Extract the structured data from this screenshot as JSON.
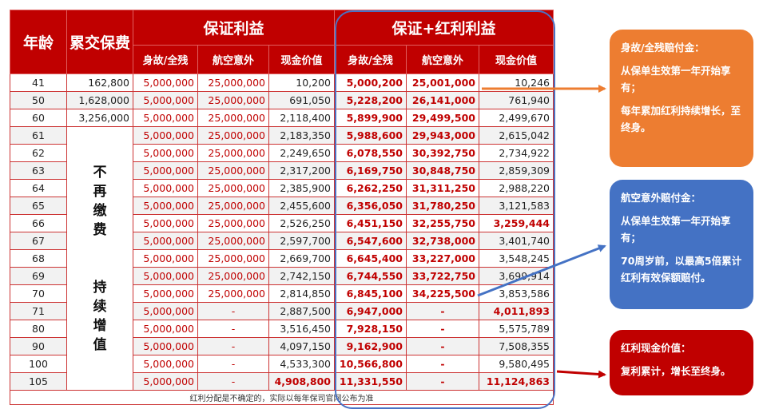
{
  "header": {
    "age": "年龄",
    "premium": "累交保费",
    "guaranteed": "保证利益",
    "bonus": "保证+红利利益",
    "death": "身故/全残",
    "air": "航空意外",
    "cash": "现金价值"
  },
  "merged_text_1": [
    "不",
    "再",
    "缴",
    "费"
  ],
  "merged_text_2": [
    "持",
    "续",
    "增",
    "值"
  ],
  "rows": [
    {
      "age": "41",
      "premium": "162,800",
      "g_death": "5,000,000",
      "g_air": "25,000,000",
      "g_cash": "10,200",
      "b_death": "5,000,200",
      "b_air": "25,001,000",
      "b_cash": "10,246"
    },
    {
      "age": "50",
      "premium": "1,628,000",
      "g_death": "5,000,000",
      "g_air": "25,000,000",
      "g_cash": "691,050",
      "b_death": "5,228,200",
      "b_air": "26,141,000",
      "b_cash": "761,940"
    },
    {
      "age": "60",
      "premium": "3,256,000",
      "g_death": "5,000,000",
      "g_air": "25,000,000",
      "g_cash": "2,118,400",
      "b_death": "5,899,900",
      "b_air": "29,499,500",
      "b_cash": "2,499,670"
    },
    {
      "age": "61",
      "premium": "",
      "g_death": "5,000,000",
      "g_air": "25,000,000",
      "g_cash": "2,183,350",
      "b_death": "5,988,600",
      "b_air": "29,943,000",
      "b_cash": "2,615,042"
    },
    {
      "age": "62",
      "premium": "",
      "g_death": "5,000,000",
      "g_air": "25,000,000",
      "g_cash": "2,249,650",
      "b_death": "6,078,550",
      "b_air": "30,392,750",
      "b_cash": "2,734,922"
    },
    {
      "age": "63",
      "premium": "",
      "g_death": "5,000,000",
      "g_air": "25,000,000",
      "g_cash": "2,317,200",
      "b_death": "6,169,750",
      "b_air": "30,848,750",
      "b_cash": "2,859,309"
    },
    {
      "age": "64",
      "premium": "",
      "g_death": "5,000,000",
      "g_air": "25,000,000",
      "g_cash": "2,385,900",
      "b_death": "6,262,250",
      "b_air": "31,311,250",
      "b_cash": "2,988,220"
    },
    {
      "age": "65",
      "premium": "",
      "g_death": "5,000,000",
      "g_air": "25,000,000",
      "g_cash": "2,455,600",
      "b_death": "6,356,050",
      "b_air": "31,780,250",
      "b_cash": "3,121,583"
    },
    {
      "age": "66",
      "premium": "",
      "g_death": "5,000,000",
      "g_air": "25,000,000",
      "g_cash": "2,526,250",
      "b_death": "6,451,150",
      "b_air": "32,255,750",
      "b_cash": "3,259,444",
      "b_cash_red": true
    },
    {
      "age": "67",
      "premium": "",
      "g_death": "5,000,000",
      "g_air": "25,000,000",
      "g_cash": "2,597,700",
      "b_death": "6,547,600",
      "b_air": "32,738,000",
      "b_cash": "3,401,740"
    },
    {
      "age": "68",
      "premium": "",
      "g_death": "5,000,000",
      "g_air": "25,000,000",
      "g_cash": "2,669,700",
      "b_death": "6,645,400",
      "b_air": "33,227,000",
      "b_cash": "3,548,245"
    },
    {
      "age": "69",
      "premium": "",
      "g_death": "5,000,000",
      "g_air": "25,000,000",
      "g_cash": "2,742,150",
      "b_death": "6,744,550",
      "b_air": "33,722,750",
      "b_cash": "3,699,914"
    },
    {
      "age": "70",
      "premium": "",
      "g_death": "5,000,000",
      "g_air": "25,000,000",
      "g_cash": "2,814,850",
      "b_death": "6,845,100",
      "b_air": "34,225,500",
      "b_cash": "3,853,586"
    },
    {
      "age": "71",
      "premium": "",
      "g_death": "5,000,000",
      "g_air": "-",
      "g_cash": "2,887,500",
      "b_death": "6,947,000",
      "b_air": "-",
      "b_cash": "4,011,893",
      "b_cash_red": true
    },
    {
      "age": "80",
      "premium": "",
      "g_death": "5,000,000",
      "g_air": "-",
      "g_cash": "3,516,450",
      "b_death": "7,928,150",
      "b_air": "-",
      "b_cash": "5,575,789"
    },
    {
      "age": "90",
      "premium": "",
      "g_death": "5,000,000",
      "g_air": "-",
      "g_cash": "4,097,150",
      "b_death": "9,162,900",
      "b_air": "-",
      "b_cash": "7,508,355"
    },
    {
      "age": "100",
      "premium": "",
      "g_death": "5,000,000",
      "g_air": "-",
      "g_cash": "4,533,300",
      "b_death": "10,566,800",
      "b_air": "-",
      "b_cash": "9,580,495"
    },
    {
      "age": "105",
      "premium": "",
      "g_death": "5,000,000",
      "g_air": "-",
      "g_cash": "4,908,800",
      "g_cash_red": true,
      "b_death": "11,331,550",
      "b_air": "-",
      "b_cash": "11,124,863",
      "b_cash_red": true
    }
  ],
  "footnote": "红利分配是不确定的，实际以每年保司官网公布为准",
  "callouts": {
    "death": {
      "title": "身故/全残赔付金：",
      "p1": "从保单生效第一年开始享有；",
      "p2": "每年累加红利持续增长，至终身。",
      "color": "#ed7d31"
    },
    "air": {
      "title": "航空意外赔付金：",
      "p1": "从保单生效第一年开始享有；",
      "p2": "70周岁前，以最高5倍累计红利有效保额赔付。",
      "color": "#4472c4"
    },
    "cash": {
      "title": "红利现金价值：",
      "p1": "复利累计，增长至终身。",
      "color": "#c00000"
    }
  },
  "colors": {
    "header_red": "#c00000",
    "outline_blue": "#4a72c4",
    "arrow_orange": "#ed7d31",
    "arrow_blue": "#4472c4",
    "arrow_red": "#c00000"
  }
}
